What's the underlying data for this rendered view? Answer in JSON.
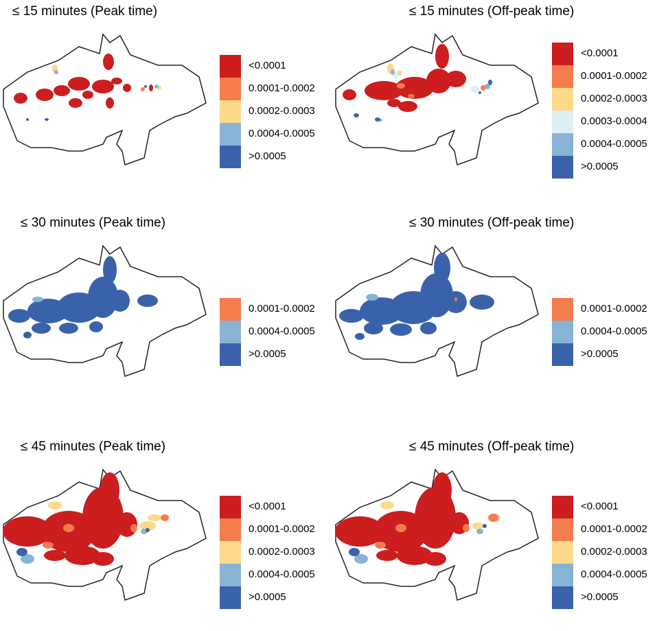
{
  "colors": {
    "<0.0001": "#cc1d1f",
    "0.0001-0.0002": "#f57c4c",
    "0.0002-0.0003": "#fdd98a",
    "0.0003-0.0004": "#deeff5",
    "0.0004-0.0005": "#88b3d5",
    ">0.0005": "#3a62ab"
  },
  "panels": [
    {
      "title": "≤ 15 minutes (Peak time)",
      "legend": [
        "<0.0001",
        "0.0001-0.0002",
        "0.0002-0.0003",
        "0.0004-0.0005",
        ">0.0005"
      ]
    },
    {
      "title": "≤ 15 minutes (Off-peak time)",
      "legend": [
        "<0.0001",
        "0.0001-0.0002",
        "0.0002-0.0003",
        "0.0003-0.0004",
        "0.0004-0.0005",
        ">0.0005"
      ]
    },
    {
      "title": "≤ 30 minutes (Peak time)",
      "legend": [
        "0.0001-0.0002",
        "0.0004-0.0005",
        ">0.0005"
      ]
    },
    {
      "title": "≤ 30 minutes (Off-peak time)",
      "legend": [
        "0.0001-0.0002",
        "0.0004-0.0005",
        ">0.0005"
      ]
    },
    {
      "title": "≤ 45 minutes (Peak time)",
      "legend": [
        "<0.0001",
        "0.0001-0.0002",
        "0.0002-0.0003",
        "0.0004-0.0005",
        ">0.0005"
      ]
    },
    {
      "title": "≤ 45 minutes (Off-peak time)",
      "legend": [
        "<0.0001",
        "0.0001-0.0002",
        "0.0002-0.0003",
        "0.0004-0.0005",
        ">0.0005"
      ]
    }
  ]
}
